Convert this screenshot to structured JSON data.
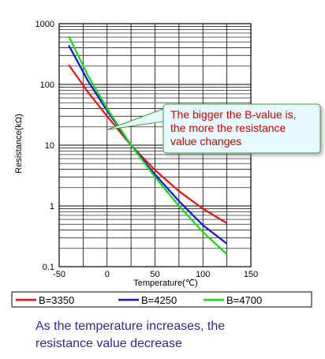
{
  "chart_data": {
    "type": "line",
    "xlabel": "Temperature(℃)",
    "ylabel": "Resistance(kΩ)",
    "xlim": [
      -50,
      150
    ],
    "ylim": [
      0.1,
      1000
    ],
    "yscale": "log",
    "x_ticks": [
      -50,
      0,
      50,
      100,
      150
    ],
    "y_ticks": [
      {
        "value": 0.1,
        "label": "0.1"
      },
      {
        "value": 1,
        "label": "1"
      },
      {
        "value": 10,
        "label": "10"
      },
      {
        "value": 100,
        "label": "100"
      },
      {
        "value": 1000,
        "label": "1000"
      }
    ],
    "grid": true,
    "series": [
      {
        "name": "B=3350",
        "color": "#ee1111",
        "x": [
          -40,
          -20,
          0,
          25,
          50,
          75,
          100,
          125
        ],
        "y": [
          210,
          75,
          30,
          10,
          3.9,
          1.75,
          0.9,
          0.52
        ]
      },
      {
        "name": "B=4250",
        "color": "#1111dd",
        "x": [
          -40,
          -20,
          0,
          25,
          50,
          75,
          100,
          125
        ],
        "y": [
          440,
          115,
          37,
          10,
          3.3,
          1.2,
          0.48,
          0.24
        ]
      },
      {
        "name": "B=4700",
        "color": "#11dd11",
        "x": [
          -40,
          -20,
          0,
          25,
          50,
          75,
          100,
          125
        ],
        "y": [
          620,
          140,
          40,
          10,
          3.0,
          1.0,
          0.37,
          0.16
        ]
      }
    ],
    "annotation": {
      "lines": [
        "The bigger the B-value is,",
        "the more the resistance",
        "value changes"
      ],
      "color": "#cc0000",
      "background": "#e6fbff",
      "point_x": 0,
      "point_y": 18
    },
    "caption": [
      "As the temperature increases, the",
      "resistance value decrease"
    ]
  }
}
